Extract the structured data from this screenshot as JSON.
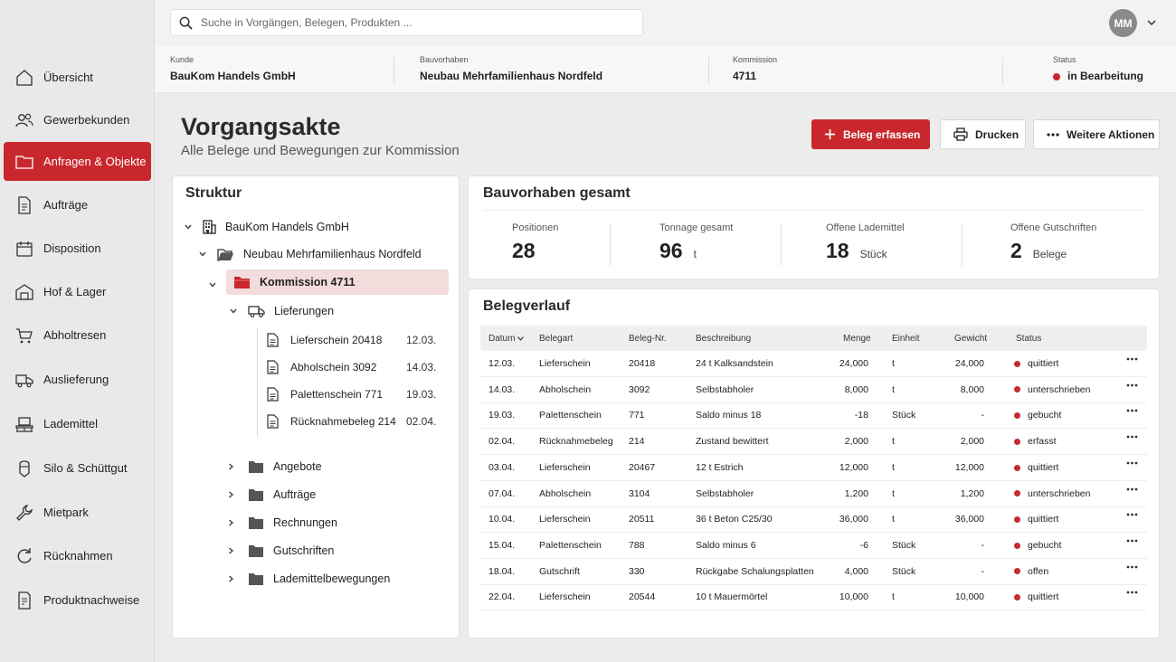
{
  "search": {
    "placeholder": "Suche in Vorgängen, Belegen, Produkten ..."
  },
  "user": {
    "initials": "MM"
  },
  "sidebar": {
    "items": [
      {
        "label": "Übersicht",
        "icon": "home-icon"
      },
      {
        "label": "Gewerbekunden",
        "icon": "users-icon"
      },
      {
        "label": "Anfragen & Objekte",
        "icon": "folder-icon",
        "active": true
      },
      {
        "label": "Aufträge",
        "icon": "document-icon"
      },
      {
        "label": "Disposition",
        "icon": "calendar-icon"
      },
      {
        "label": "Hof & Lager",
        "icon": "warehouse-icon"
      },
      {
        "label": "Abholtresen",
        "icon": "cart-icon"
      },
      {
        "label": "Auslieferung",
        "icon": "truck-icon"
      },
      {
        "label": "Lademittel",
        "icon": "pallet-icon"
      },
      {
        "label": "Silo & Schüttgut",
        "icon": "silo-icon"
      },
      {
        "label": "Mietpark",
        "icon": "wrench-icon"
      },
      {
        "label": "Rücknahmen",
        "icon": "refresh-icon"
      },
      {
        "label": "Produktnachweise",
        "icon": "certificate-icon"
      }
    ]
  },
  "info": {
    "kunde_label": "Kunde",
    "kunde": "BauKom Handels GmbH",
    "bauvorhaben_label": "Bauvorhaben",
    "bauvorhaben": "Neubau Mehrfamilienhaus Nordfeld",
    "kommission_label": "Kommission",
    "kommission": "4711",
    "status_label": "Status",
    "status": "in Bearbeitung"
  },
  "page": {
    "title": "Vorgangsakte",
    "subtitle": "Alle Belege und Bewegungen zur Kommission"
  },
  "actions": {
    "primary": "Beleg erfassen",
    "print": "Drucken",
    "more": "Weitere Aktionen"
  },
  "struktur": {
    "title": "Struktur",
    "customer": "BauKom Handels GmbH",
    "project": "Neubau Mehrfamilienhaus Nordfeld",
    "commission": "Kommission 4711",
    "deliveries": "Lieferungen",
    "docs": [
      {
        "name": "Lieferschein 20418",
        "date": "12.03."
      },
      {
        "name": "Abholschein 3092",
        "date": "14.03."
      },
      {
        "name": "Palettenschein 771",
        "date": "19.03."
      },
      {
        "name": "Rücknahmebeleg 214",
        "date": "02.04."
      }
    ],
    "folders": [
      "Angebote",
      "Aufträge",
      "Rechnungen",
      "Gutschriften",
      "Lademittelbewegungen"
    ]
  },
  "summary": {
    "title": "Bauvorhaben gesamt",
    "kpis": [
      {
        "label": "Positionen",
        "value": "28",
        "unit": ""
      },
      {
        "label": "Tonnage gesamt",
        "value": "96",
        "unit": "t"
      },
      {
        "label": "Offene Lademittel",
        "value": "18",
        "unit": "Stück"
      },
      {
        "label": "Offene Gutschriften",
        "value": "2",
        "unit": "Belege"
      }
    ]
  },
  "belegverlauf": {
    "title": "Belegverlauf",
    "columns": {
      "datum": "Datum",
      "belegart": "Belegart",
      "nr": "Beleg-Nr.",
      "beschreibung": "Beschreibung",
      "menge": "Menge",
      "einheit": "Einheit",
      "gewicht": "Gewicht",
      "status": "Status"
    },
    "rows": [
      {
        "datum": "12.03.",
        "belegart": "Lieferschein",
        "nr": "20418",
        "beschreibung": "24 t Kalksandstein",
        "menge": "24,000",
        "einheit": "t",
        "gewicht": "24,000",
        "status": "quittiert"
      },
      {
        "datum": "14.03.",
        "belegart": "Abholschein",
        "nr": "3092",
        "beschreibung": "Selbstabholer",
        "menge": "8,000",
        "einheit": "t",
        "gewicht": "8,000",
        "status": "unterschrieben"
      },
      {
        "datum": "19.03.",
        "belegart": "Palettenschein",
        "nr": "771",
        "beschreibung": "Saldo minus 18",
        "menge": "-18",
        "einheit": "Stück",
        "gewicht": "-",
        "status": "gebucht"
      },
      {
        "datum": "02.04.",
        "belegart": "Rücknahmebeleg",
        "nr": "214",
        "beschreibung": "Zustand bewittert",
        "menge": "2,000",
        "einheit": "t",
        "gewicht": "2,000",
        "status": "erfasst"
      },
      {
        "datum": "03.04.",
        "belegart": "Lieferschein",
        "nr": "20467",
        "beschreibung": "12 t Estrich",
        "menge": "12,000",
        "einheit": "t",
        "gewicht": "12,000",
        "status": "quittiert"
      },
      {
        "datum": "07.04.",
        "belegart": "Abholschein",
        "nr": "3104",
        "beschreibung": "Selbstabholer",
        "menge": "1,200",
        "einheit": "t",
        "gewicht": "1,200",
        "status": "unterschrieben"
      },
      {
        "datum": "10.04.",
        "belegart": "Lieferschein",
        "nr": "20511",
        "beschreibung": "36 t Beton C25/30",
        "menge": "36,000",
        "einheit": "t",
        "gewicht": "36,000",
        "status": "quittiert"
      },
      {
        "datum": "15.04.",
        "belegart": "Palettenschein",
        "nr": "788",
        "beschreibung": "Saldo minus 6",
        "menge": "-6",
        "einheit": "Stück",
        "gewicht": "-",
        "status": "gebucht"
      },
      {
        "datum": "18.04.",
        "belegart": "Gutschrift",
        "nr": "330",
        "beschreibung": "Rückgabe Schalungsplatten",
        "menge": "4,000",
        "einheit": "Stück",
        "gewicht": "-",
        "status": "offen"
      },
      {
        "datum": "22.04.",
        "belegart": "Lieferschein",
        "nr": "20544",
        "beschreibung": "10 t Mauermörtel",
        "menge": "10,000",
        "einheit": "t",
        "gewicht": "10,000",
        "status": "quittiert"
      }
    ]
  },
  "colors": {
    "accent": "#c8282d",
    "status_dot": "#b5242a"
  }
}
